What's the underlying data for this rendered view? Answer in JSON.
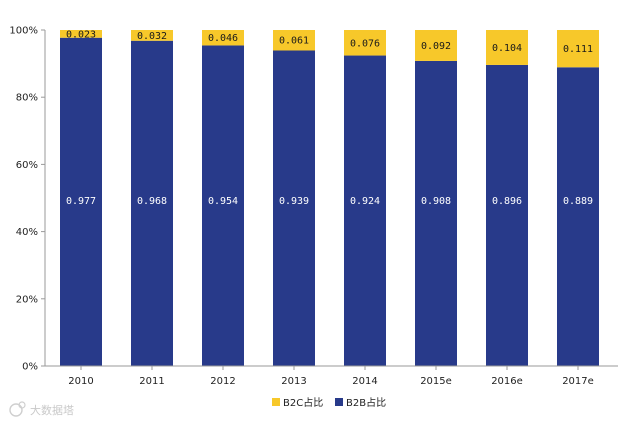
{
  "chart_data": {
    "type": "bar",
    "stacked": true,
    "categories": [
      "2010",
      "2011",
      "2012",
      "2013",
      "2014",
      "2015e",
      "2016e",
      "2017e"
    ],
    "series": [
      {
        "name": "B2B占比",
        "color": "#283a8a",
        "values": [
          0.977,
          0.968,
          0.954,
          0.939,
          0.924,
          0.908,
          0.896,
          0.889
        ],
        "labels": [
          "0.977",
          "0.968",
          "0.954",
          "0.939",
          "0.924",
          "0.908",
          "0.896",
          "0.889"
        ]
      },
      {
        "name": "B2C占比",
        "color": "#f7c82a",
        "values": [
          0.023,
          0.032,
          0.046,
          0.061,
          0.076,
          0.092,
          0.104,
          0.111
        ],
        "labels": [
          "0.023",
          "0.032",
          "0.046",
          "0.061",
          "0.076",
          "0.092",
          "0.104",
          "0.111"
        ]
      }
    ],
    "ylim": [
      0,
      1
    ],
    "yticks": [
      {
        "value": 0,
        "label": "0%"
      },
      {
        "value": 0.2,
        "label": "20%"
      },
      {
        "value": 0.4,
        "label": "40%"
      },
      {
        "value": 0.6,
        "label": "60%"
      },
      {
        "value": 0.8,
        "label": "80%"
      },
      {
        "value": 1,
        "label": "100%"
      }
    ],
    "legend": {
      "placement": "bottom-center",
      "items": [
        {
          "label": "B2C占比",
          "color": "#f7c82a"
        },
        {
          "label": "B2B占比",
          "color": "#283a8a"
        }
      ]
    },
    "grid": false
  },
  "watermark": {
    "text": "大数据塔",
    "icon": "weibo-logo-icon"
  }
}
